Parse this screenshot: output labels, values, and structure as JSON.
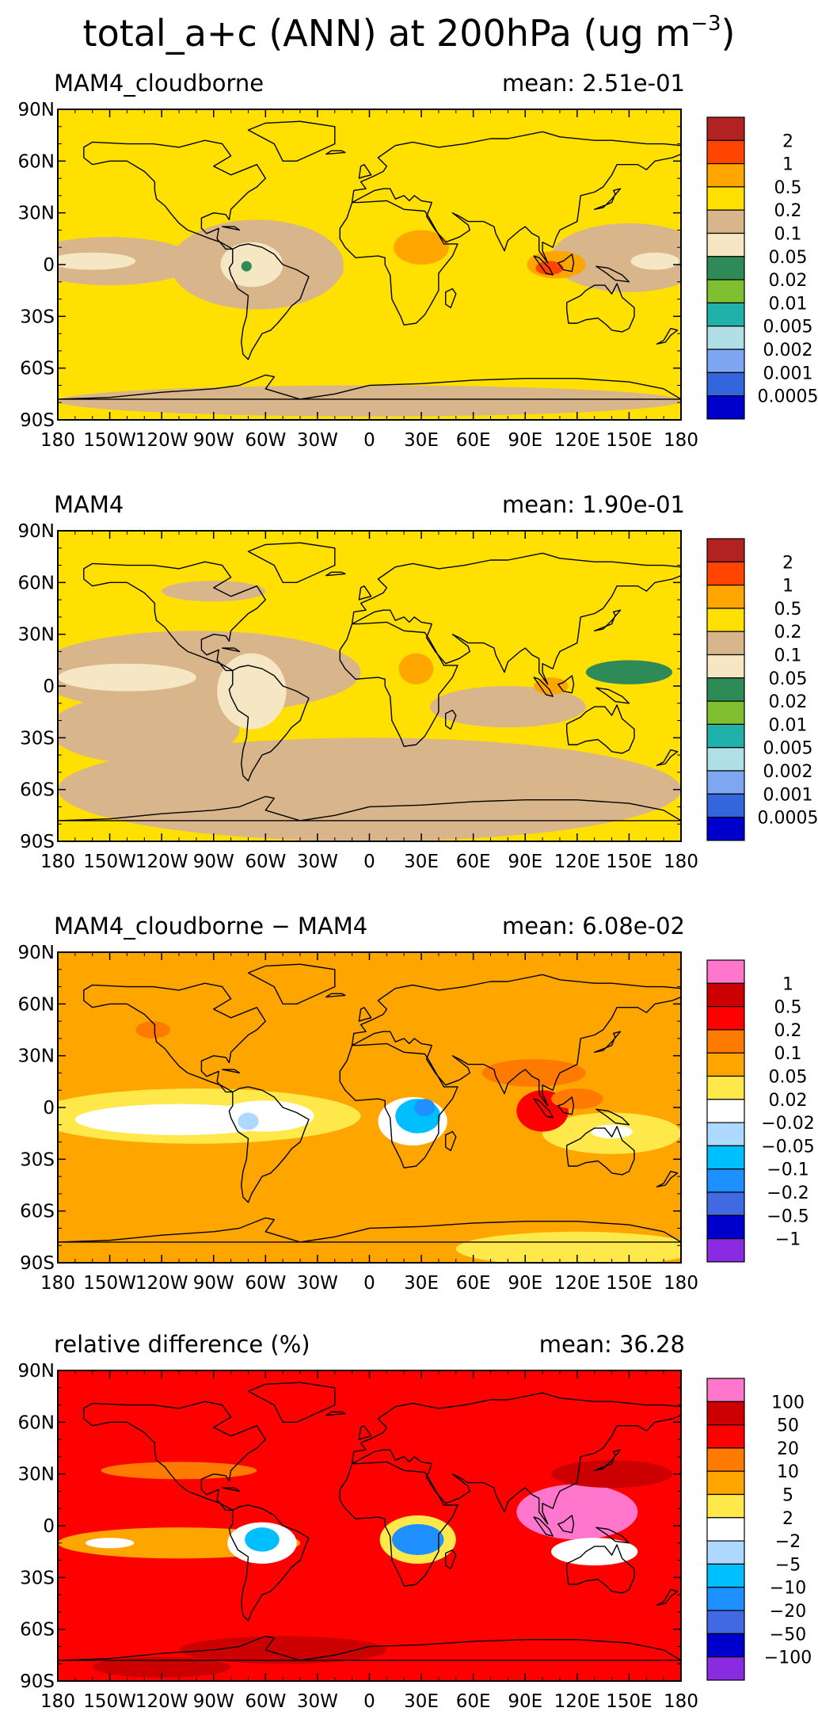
{
  "figure": {
    "title_main": "total_a+c (ANN) at 200hPa (ug m",
    "title_exp": "−3",
    "title_close": ")"
  },
  "axes": {
    "x_tick_labels": [
      "180",
      "150W",
      "120W",
      "90W",
      "60W",
      "30W",
      "0",
      "30E",
      "60E",
      "90E",
      "120E",
      "150E",
      "180"
    ],
    "y_tick_labels": [
      "90N",
      "60N",
      "30N",
      "0",
      "30S",
      "60S",
      "90S"
    ]
  },
  "colors": {
    "conc": [
      "#0000cc",
      "#3366dd",
      "#7fa6f0",
      "#b0e0e6",
      "#20b2aa",
      "#80c030",
      "#2e8b57",
      "#f5e6c4",
      "#d8b58a",
      "#ffe000",
      "#ffa500",
      "#ff4500",
      "#b22222"
    ],
    "diff": [
      "#8a2be2",
      "#0000cd",
      "#4169e1",
      "#1e90ff",
      "#00bfff",
      "#add8ff",
      "#ffffff",
      "#ffe84a",
      "#ffa500",
      "#ff7a00",
      "#ff0000",
      "#cc0000",
      "#ff77cc"
    ]
  },
  "chart_data": [
    {
      "type": "heatmap",
      "title": "MAM4_cloudborne",
      "mean_label": "mean: 2.51e-01",
      "xlim": [
        -180,
        180
      ],
      "ylim": [
        -90,
        90
      ],
      "colorbar_labels": [
        "2",
        "1",
        "0.5",
        "0.2",
        "0.1",
        "0.05",
        "0.02",
        "0.01",
        "0.005",
        "0.002",
        "0.001",
        "0.0005"
      ],
      "background_class": 9,
      "regions": [
        {
          "lon": -150,
          "lat": 2,
          "rlon": 50,
          "rlat": 14,
          "cls": 8
        },
        {
          "lon": -65,
          "lat": 0,
          "rlon": 50,
          "rlat": 26,
          "cls": 8
        },
        {
          "lon": -40,
          "lat": -3,
          "rlon": 25,
          "rlat": 12,
          "cls": 8
        },
        {
          "lon": 150,
          "lat": 4,
          "rlon": 45,
          "rlat": 20,
          "cls": 8
        },
        {
          "lon": 165,
          "lat": 2,
          "rlon": 14,
          "rlat": 5,
          "cls": 7
        },
        {
          "lon": -160,
          "lat": 2,
          "rlon": 25,
          "rlat": 5,
          "cls": 7
        },
        {
          "lon": -68,
          "lat": 0,
          "rlon": 18,
          "rlat": 13,
          "cls": 7
        },
        {
          "lon": 0,
          "lat": -79,
          "rlon": 180,
          "rlat": 9,
          "cls": 8
        },
        {
          "lon": 30,
          "lat": 10,
          "rlon": 16,
          "rlat": 10,
          "cls": 10
        },
        {
          "lon": 108,
          "lat": 0,
          "rlon": 17,
          "rlat": 8,
          "cls": 10
        },
        {
          "lon": 104,
          "lat": -2,
          "rlon": 8,
          "rlat": 4,
          "cls": 11
        },
        {
          "lon": -71,
          "lat": -1,
          "rlon": 3,
          "rlat": 3,
          "cls": 6
        }
      ]
    },
    {
      "type": "heatmap",
      "title": "MAM4",
      "mean_label": "mean: 1.90e-01",
      "xlim": [
        -180,
        180
      ],
      "ylim": [
        -90,
        90
      ],
      "colorbar_labels": [
        "2",
        "1",
        "0.5",
        "0.2",
        "0.1",
        "0.05",
        "0.02",
        "0.01",
        "0.005",
        "0.002",
        "0.001",
        "0.0005"
      ],
      "background_class": 9,
      "regions": [
        {
          "lon": -100,
          "lat": 8,
          "rlon": 95,
          "rlat": 24,
          "cls": 8
        },
        {
          "lon": 0,
          "lat": -60,
          "rlon": 180,
          "rlat": 30,
          "cls": 8
        },
        {
          "lon": 80,
          "lat": -12,
          "rlon": 45,
          "rlat": 12,
          "cls": 8
        },
        {
          "lon": -130,
          "lat": -25,
          "rlon": 55,
          "rlat": 20,
          "cls": 8
        },
        {
          "lon": -90,
          "lat": 55,
          "rlon": 30,
          "rlat": 6,
          "cls": 8
        },
        {
          "lon": -140,
          "lat": 5,
          "rlon": 40,
          "rlat": 8,
          "cls": 7
        },
        {
          "lon": -68,
          "lat": -3,
          "rlon": 20,
          "rlat": 22,
          "cls": 7
        },
        {
          "lon": 130,
          "lat": 8,
          "rlon": 20,
          "rlat": 14,
          "cls": 9
        },
        {
          "lon": 150,
          "lat": 8,
          "rlon": 25,
          "rlat": 7,
          "cls": 6
        },
        {
          "lon": 27,
          "lat": 10,
          "rlon": 10,
          "rlat": 9,
          "cls": 10
        },
        {
          "lon": 105,
          "lat": 0,
          "rlon": 10,
          "rlat": 5,
          "cls": 10
        }
      ]
    },
    {
      "type": "heatmap",
      "title": "MAM4_cloudborne − MAM4",
      "mean_label": "mean: 6.08e-02",
      "xlim": [
        -180,
        180
      ],
      "ylim": [
        -90,
        90
      ],
      "colorbar_labels": [
        "1",
        "0.5",
        "0.2",
        "0.1",
        "0.05",
        "0.02",
        "−0.02",
        "−0.05",
        "−0.1",
        "−0.2",
        "−0.5",
        "−1"
      ],
      "background_class": 8,
      "regions": [
        {
          "lon": -100,
          "lat": -5,
          "rlon": 95,
          "rlat": 16,
          "cls": 7
        },
        {
          "lon": 140,
          "lat": -15,
          "rlon": 40,
          "rlat": 12,
          "cls": 7
        },
        {
          "lon": 120,
          "lat": -82,
          "rlon": 70,
          "rlat": 10,
          "cls": 7
        },
        {
          "lon": -110,
          "lat": -7,
          "rlon": 60,
          "rlat": 9,
          "cls": 6
        },
        {
          "lon": -60,
          "lat": -5,
          "rlon": 28,
          "rlat": 9,
          "cls": 6
        },
        {
          "lon": 140,
          "lat": -14,
          "rlon": 12,
          "rlat": 4,
          "cls": 6
        },
        {
          "lon": 25,
          "lat": -8,
          "rlon": 20,
          "rlat": 14,
          "cls": 6
        },
        {
          "lon": 28,
          "lat": -5,
          "rlon": 13,
          "rlat": 10,
          "cls": 4
        },
        {
          "lon": 32,
          "lat": 0,
          "rlon": 6,
          "rlat": 5,
          "cls": 3
        },
        {
          "lon": -70,
          "lat": -8,
          "rlon": 6,
          "rlat": 5,
          "cls": 5
        },
        {
          "lon": 95,
          "lat": 20,
          "rlon": 30,
          "rlat": 8,
          "cls": 9
        },
        {
          "lon": 100,
          "lat": -2,
          "rlon": 15,
          "rlat": 12,
          "cls": 10
        },
        {
          "lon": 120,
          "lat": 5,
          "rlon": 15,
          "rlat": 6,
          "cls": 9
        },
        {
          "lon": -125,
          "lat": 45,
          "rlon": 10,
          "rlat": 5,
          "cls": 9
        }
      ]
    },
    {
      "type": "heatmap",
      "title": "relative difference (%)",
      "mean_label": "mean: 36.28",
      "xlim": [
        -180,
        180
      ],
      "ylim": [
        -90,
        90
      ],
      "colorbar_labels": [
        "100",
        "50",
        "20",
        "10",
        "5",
        "2",
        "−2",
        "−5",
        "−10",
        "−20",
        "−50",
        "−100"
      ],
      "background_class": 10,
      "regions": [
        {
          "lon": 120,
          "lat": 8,
          "rlon": 35,
          "rlat": 16,
          "cls": 12
        },
        {
          "lon": 140,
          "lat": 30,
          "rlon": 35,
          "rlat": 8,
          "cls": 11
        },
        {
          "lon": -110,
          "lat": 32,
          "rlon": 45,
          "rlat": 5,
          "cls": 9
        },
        {
          "lon": -110,
          "lat": -10,
          "rlon": 70,
          "rlat": 9,
          "cls": 8
        },
        {
          "lon": -62,
          "lat": -10,
          "rlon": 20,
          "rlat": 12,
          "cls": 6
        },
        {
          "lon": -62,
          "lat": -8,
          "rlon": 10,
          "rlat": 7,
          "cls": 4
        },
        {
          "lon": -150,
          "lat": -10,
          "rlon": 14,
          "rlat": 3,
          "cls": 6
        },
        {
          "lon": 28,
          "lat": -8,
          "rlon": 22,
          "rlat": 14,
          "cls": 7
        },
        {
          "lon": 28,
          "lat": -8,
          "rlon": 15,
          "rlat": 9,
          "cls": 3
        },
        {
          "lon": 130,
          "lat": -15,
          "rlon": 25,
          "rlat": 8,
          "cls": 6
        },
        {
          "lon": -50,
          "lat": -72,
          "rlon": 60,
          "rlat": 8,
          "cls": 11
        },
        {
          "lon": -120,
          "lat": -82,
          "rlon": 40,
          "rlat": 6,
          "cls": 11
        }
      ]
    }
  ]
}
